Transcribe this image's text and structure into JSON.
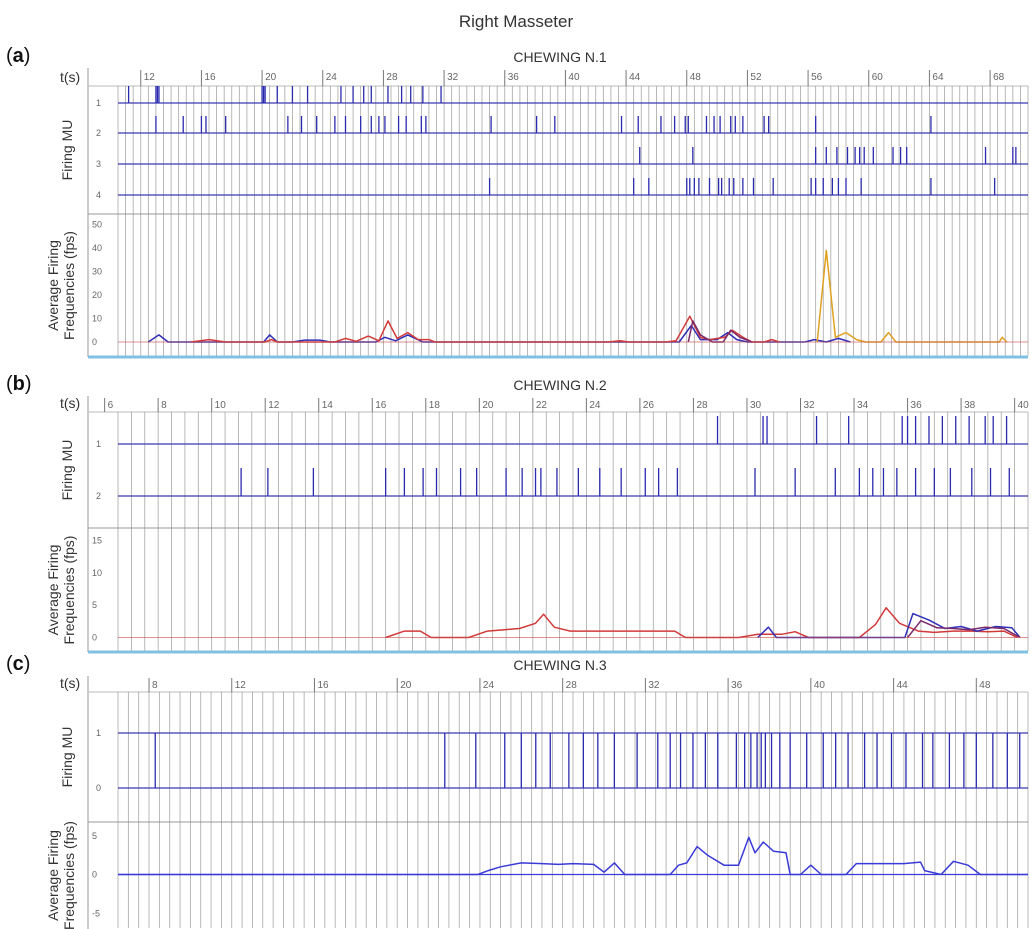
{
  "figure": {
    "title": "Right Masseter",
    "time_axis_label": "t(s)",
    "firing_label": "Firing MU",
    "frequency_label_line1": "Average Firing",
    "frequency_label_line2": "Frequencies (fps)"
  },
  "colors": {
    "spike": "#2b2bb0",
    "baseline": "#3a3ab0",
    "gridline": "#8a8a8a",
    "panel_bottom": "#7fc1e0",
    "mu_series": [
      "#2f2fb8",
      "#d23a3a",
      "#7a2a6a",
      "#e0a020"
    ]
  },
  "chart_data": [
    {
      "type": "line",
      "panel_letter": "a",
      "title": "CHEWING N.1",
      "time_range": [
        10.5,
        70.5
      ],
      "time_ticks": [
        "12",
        "16",
        "20",
        "24",
        "28",
        "32",
        "36",
        "40",
        "44",
        "48",
        "52",
        "56",
        "60",
        "64",
        "68"
      ],
      "firing_units": [
        "1",
        "2",
        "3",
        "4"
      ],
      "firing_times": [
        [
          11.2,
          13,
          13.1,
          13.2,
          20,
          20.1,
          20.2,
          21,
          22,
          23,
          25.2,
          26,
          26.7,
          27.2,
          28.3,
          29.2,
          29.8,
          30.6,
          31.8
        ],
        [
          13,
          14.8,
          16,
          16.3,
          17.6,
          21.7,
          22.6,
          23.6,
          24.8,
          25.5,
          26.5,
          27.2,
          27.7,
          28.1,
          29,
          29.5,
          30.5,
          30.8,
          35.1,
          38.1,
          39.3,
          43.7,
          44.8,
          46.3,
          47.2,
          47.9,
          48.1,
          49.3,
          49.8,
          50.2,
          50.9,
          51.2,
          51.7,
          53.1,
          53.4,
          56.5,
          64.1
        ],
        [
          44.9,
          48.4,
          56.5,
          57.2,
          57.9,
          58.6,
          59.1,
          59.4,
          59.7,
          60.3,
          61.6,
          62.1,
          62.5,
          67.7,
          69.5,
          69.7
        ],
        [
          35,
          44.5,
          45.5,
          48,
          48.2,
          48.5,
          48.8,
          49.5,
          50.1,
          50.3,
          50.8,
          51.1,
          51.7,
          52.4,
          53.7,
          56.2,
          56.5,
          57,
          57.6,
          58,
          58.5,
          59.5,
          64.1,
          68.3
        ]
      ],
      "y_ticks": [
        "50",
        "40",
        "30",
        "20",
        "10",
        "0"
      ],
      "ylim": [
        -3,
        52
      ],
      "series": [
        {
          "color": "#2f2fb8",
          "points": [
            [
              12.5,
              0
            ],
            [
              13.2,
              3
            ],
            [
              13.8,
              0
            ],
            [
              20.1,
              0
            ],
            [
              20.5,
              3
            ],
            [
              21,
              0
            ],
            [
              22,
              0
            ],
            [
              22.8,
              0.8
            ],
            [
              23.8,
              0.8
            ],
            [
              24.5,
              0
            ],
            [
              27.5,
              0
            ],
            [
              28.1,
              2
            ],
            [
              28.8,
              0.5
            ],
            [
              29.6,
              3
            ],
            [
              30.6,
              0
            ],
            [
              47.5,
              0
            ],
            [
              48.3,
              7
            ],
            [
              48.9,
              1
            ],
            [
              50,
              1
            ],
            [
              50.7,
              4
            ],
            [
              51.3,
              1
            ],
            [
              52,
              0
            ],
            [
              55.8,
              0
            ],
            [
              56.4,
              1
            ],
            [
              57.2,
              0
            ],
            [
              58,
              1.5
            ],
            [
              58.8,
              0
            ]
          ]
        },
        {
          "color": "#d23a3a",
          "points": [
            [
              15.3,
              0
            ],
            [
              16.5,
              1
            ],
            [
              17.6,
              0
            ],
            [
              20.2,
              0
            ],
            [
              20.6,
              1
            ],
            [
              21,
              0
            ],
            [
              24.8,
              0
            ],
            [
              25.5,
              1.5
            ],
            [
              26.2,
              0.3
            ],
            [
              27,
              2.5
            ],
            [
              27.7,
              0.5
            ],
            [
              28.3,
              9
            ],
            [
              28.9,
              1.5
            ],
            [
              29.6,
              4
            ],
            [
              30.3,
              1
            ],
            [
              31,
              1
            ],
            [
              31.4,
              0
            ],
            [
              42.8,
              0
            ],
            [
              43.6,
              0.5
            ],
            [
              44.2,
              0
            ],
            [
              46.6,
              0
            ],
            [
              47.3,
              0.5
            ],
            [
              48.2,
              11
            ],
            [
              48.9,
              2
            ],
            [
              49.5,
              1
            ],
            [
              50.5,
              2
            ],
            [
              51,
              5
            ],
            [
              51.7,
              2
            ],
            [
              52.3,
              0
            ],
            [
              53.1,
              0
            ],
            [
              53.6,
              1
            ],
            [
              54.1,
              0
            ]
          ]
        },
        {
          "color": "#7a2a6a",
          "points": [
            [
              48.1,
              0
            ],
            [
              48.4,
              9
            ],
            [
              48.9,
              3
            ],
            [
              49.7,
              0
            ],
            [
              50.4,
              0
            ],
            [
              50.9,
              5
            ],
            [
              51.5,
              2
            ],
            [
              52.3,
              0
            ]
          ]
        },
        {
          "color": "#e0a020",
          "points": [
            [
              56.6,
              0
            ],
            [
              57.2,
              39
            ],
            [
              57.8,
              2
            ],
            [
              58.5,
              4
            ],
            [
              59.2,
              1
            ],
            [
              59.8,
              0
            ],
            [
              60.8,
              0
            ],
            [
              61.3,
              4
            ],
            [
              61.8,
              0
            ],
            [
              68.6,
              0
            ],
            [
              68.8,
              2
            ],
            [
              69.1,
              0
            ]
          ]
        }
      ]
    },
    {
      "type": "line",
      "panel_letter": "b",
      "title": "CHEWING N.2",
      "time_range": [
        6.5,
        40.5
      ],
      "time_ticks": [
        "6",
        "8",
        "10",
        "12",
        "14",
        "16",
        "18",
        "20",
        "22",
        "24",
        "26",
        "28",
        "30",
        "32",
        "34",
        "36",
        "38",
        "40"
      ],
      "firing_units": [
        "1",
        "2"
      ],
      "firing_times": [
        [
          28.9,
          30.6,
          30.75,
          32.6,
          33.8,
          35.8,
          36,
          36.3,
          36.8,
          37.3,
          37.8,
          38.3,
          38.9,
          39.2,
          39.7
        ],
        [
          11.1,
          12.1,
          13.8,
          16.5,
          17.2,
          17.9,
          18.4,
          19.3,
          19.9,
          21,
          21.6,
          22.1,
          22.3,
          22.9,
          23.7,
          24.5,
          25.3,
          26.2,
          26.7,
          27.4,
          30.3,
          31.8,
          33.3,
          34.2,
          34.7,
          35.1,
          35.6,
          36.3,
          37,
          37.6,
          38.4,
          39.1,
          39.8
        ]
      ],
      "y_ticks": [
        "15",
        "10",
        "5",
        "0"
      ],
      "ylim": [
        -1,
        16
      ],
      "series": [
        {
          "color": "#d23a3a",
          "points": [
            [
              16.5,
              0
            ],
            [
              17.2,
              1
            ],
            [
              17.8,
              1
            ],
            [
              18.2,
              0
            ],
            [
              19.6,
              0
            ],
            [
              20.3,
              1
            ],
            [
              21.5,
              1.4
            ],
            [
              22.1,
              2.2
            ],
            [
              22.4,
              3.6
            ],
            [
              22.8,
              1.6
            ],
            [
              23.4,
              1
            ],
            [
              26.2,
              1
            ],
            [
              27.3,
              1
            ],
            [
              27.7,
              0
            ],
            [
              29.7,
              0
            ],
            [
              30.4,
              0.5
            ],
            [
              31.3,
              0.5
            ],
            [
              31.8,
              0.9
            ],
            [
              32.3,
              0
            ],
            [
              34.2,
              0
            ],
            [
              34.8,
              2
            ],
            [
              35.2,
              4.6
            ],
            [
              35.7,
              2.2
            ],
            [
              36.4,
              1
            ],
            [
              37,
              0.8
            ],
            [
              37.7,
              1
            ],
            [
              38.4,
              1
            ],
            [
              39,
              0.9
            ],
            [
              39.6,
              1
            ],
            [
              40.1,
              0
            ]
          ]
        },
        {
          "color": "#2f2fb8",
          "points": [
            [
              30.4,
              0
            ],
            [
              30.8,
              1.6
            ],
            [
              31.1,
              0
            ],
            [
              35.9,
              0
            ],
            [
              36.2,
              3.7
            ],
            [
              36.8,
              2.7
            ],
            [
              37.4,
              1.4
            ],
            [
              38,
              1.7
            ],
            [
              38.6,
              1
            ],
            [
              39.3,
              1.7
            ],
            [
              39.9,
              1.5
            ],
            [
              40.2,
              0
            ]
          ]
        },
        {
          "color": "#7a2a6a",
          "points": [
            [
              36,
              0
            ],
            [
              36.5,
              2.6
            ],
            [
              37.1,
              1.5
            ],
            [
              37.7,
              1.4
            ],
            [
              38.3,
              1.2
            ],
            [
              38.9,
              1.6
            ],
            [
              39.6,
              1.4
            ],
            [
              40.2,
              0
            ]
          ]
        }
      ]
    },
    {
      "type": "line",
      "panel_letter": "c",
      "title": "CHEWING N.3",
      "time_range": [
        6.5,
        50.5
      ],
      "time_ticks": [
        "8",
        "12",
        "16",
        "20",
        "24",
        "28",
        "32",
        "36",
        "40",
        "44",
        "48"
      ],
      "firing_units": [
        "1",
        "0"
      ],
      "firing_times": [
        [
          8.3,
          22.3,
          23.8,
          25.2,
          26,
          26.7,
          27.4,
          28.3,
          29,
          29.7,
          30.5,
          31.6,
          32.6,
          33.2,
          33.7,
          34.3,
          34.9,
          35.5,
          36.4,
          36.8,
          37.1,
          37.4,
          37.6,
          37.8,
          38.1,
          38.5,
          39,
          39.8,
          40.6,
          41.2,
          41.8,
          42.6,
          43.2,
          43.9,
          44.6,
          45.4,
          45.9,
          46.7,
          47.4,
          48,
          48.8,
          49.5,
          50.1
        ]
      ],
      "y_ticks": [
        "5",
        "0",
        "-5"
      ],
      "ylim": [
        -6,
        6
      ],
      "series": [
        {
          "color": "#3a3ad8",
          "points": [
            [
              6.5,
              0
            ],
            [
              23.9,
              0
            ],
            [
              24.4,
              0.5
            ],
            [
              25,
              1
            ],
            [
              26,
              1.5
            ],
            [
              27,
              1.4
            ],
            [
              27.8,
              1.3
            ],
            [
              28.5,
              1.4
            ],
            [
              29.5,
              1.3
            ],
            [
              30,
              0.3
            ],
            [
              30.5,
              1.5
            ],
            [
              31,
              0
            ],
            [
              33.2,
              0
            ],
            [
              33.6,
              1.2
            ],
            [
              34,
              1.5
            ],
            [
              34.5,
              3.6
            ],
            [
              35,
              2.5
            ],
            [
              35.8,
              1.2
            ],
            [
              36.5,
              1.2
            ],
            [
              37,
              4.8
            ],
            [
              37.3,
              2.8
            ],
            [
              37.7,
              4.2
            ],
            [
              38.2,
              3
            ],
            [
              38.8,
              2.8
            ],
            [
              39,
              0
            ],
            [
              39.5,
              0
            ],
            [
              40,
              1.2
            ],
            [
              40.5,
              0
            ],
            [
              41.7,
              0
            ],
            [
              42.2,
              1.4
            ],
            [
              44.5,
              1.4
            ],
            [
              45.3,
              1.6
            ],
            [
              45.5,
              0.5
            ],
            [
              46.3,
              0
            ],
            [
              46.9,
              1.7
            ],
            [
              47.6,
              1.2
            ],
            [
              48.2,
              0
            ],
            [
              50.5,
              0
            ]
          ]
        }
      ]
    }
  ]
}
